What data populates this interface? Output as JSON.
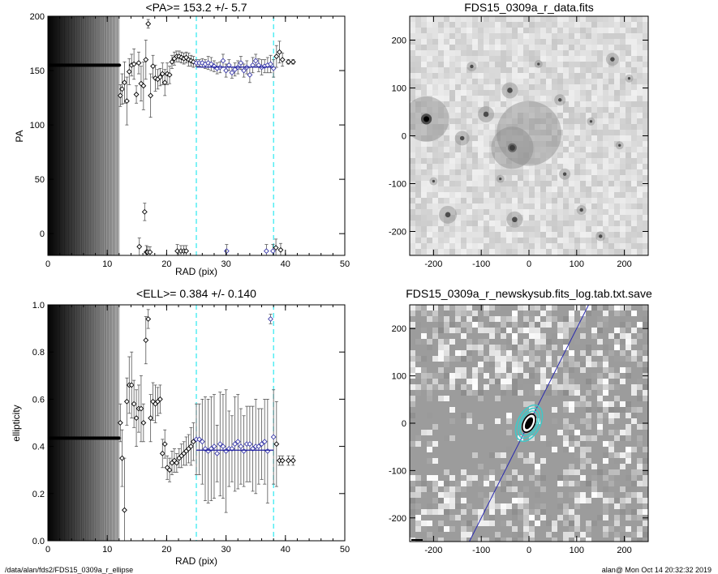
{
  "footer": {
    "left": "/data/alan/fds2/FDS15_0309a_r_ellipse",
    "right": "alan@  Mon Oct 14 20:32:32 2019"
  },
  "chart_data": [
    {
      "type": "scatter",
      "title": "<PA>= 153.2 +/-   5.7",
      "xlabel": "RAD (pix)",
      "ylabel": "PA",
      "xlim": [
        0,
        50
      ],
      "ylim": [
        -20,
        200
      ],
      "xticks": [
        0,
        10,
        20,
        30,
        40,
        50
      ],
      "yticks": [
        0,
        50,
        100,
        150,
        200
      ],
      "grayscale_band": [
        0,
        12
      ],
      "vlines": [
        25,
        38
      ],
      "vline_color": "#00e5ee",
      "fit": {
        "x": [
          25,
          38
        ],
        "y": 153.2,
        "color": "#1a1aa0"
      },
      "inner_points": {
        "x_start": 0.3,
        "x_end": 12,
        "y": 155
      },
      "x": [
        12.2,
        12.5,
        12.9,
        13.3,
        13.7,
        14.1,
        14.5,
        14.9,
        15.3,
        15.7,
        16.1,
        16.5,
        16.9,
        17.3,
        17.7,
        18.1,
        18.5,
        18.9,
        19.3,
        19.7,
        20.1,
        20.5,
        20.9,
        21.3,
        21.7,
        22.1,
        22.5,
        22.9,
        23.3,
        23.7,
        24.1,
        24.5,
        25.0,
        25.5,
        26.0,
        26.5,
        27.0,
        27.5,
        28.0,
        28.5,
        29.0,
        29.5,
        30.0,
        30.5,
        31.0,
        31.5,
        32.0,
        32.5,
        33.0,
        33.5,
        34.0,
        34.5,
        35.0,
        35.5,
        36.0,
        36.5,
        37.0,
        37.5,
        38.0,
        38.5,
        39.0,
        39.5,
        40.5,
        41.3,
        15.4,
        16.3,
        16.6,
        16.8,
        17.2,
        21.8,
        22.4,
        22.9,
        23.3,
        30.1,
        36.8,
        37.9,
        38.4,
        39.2
      ],
      "y": [
        127,
        133,
        139,
        122,
        149,
        155,
        156,
        128,
        157,
        138,
        136,
        160,
        193,
        127,
        154,
        143,
        142,
        144,
        147,
        139,
        147,
        146,
        158,
        161,
        163,
        163,
        162,
        161,
        162,
        160,
        159,
        158,
        157,
        157,
        157,
        156,
        157,
        156,
        154,
        152,
        153,
        159,
        150,
        155,
        148,
        151,
        153,
        157,
        150,
        153,
        146,
        155,
        159,
        155,
        153,
        154,
        155,
        156,
        152,
        163,
        167,
        160,
        158,
        158,
        -12,
        20,
        -17,
        -17,
        -17,
        -16,
        -16,
        -16,
        -16,
        -16,
        -16,
        -16,
        -13,
        -15
      ],
      "err": [
        10,
        14,
        19,
        22,
        12,
        10,
        14,
        8,
        10,
        16,
        22,
        18,
        4,
        20,
        10,
        12,
        9,
        8,
        10,
        12,
        10,
        8,
        6,
        6,
        5,
        5,
        5,
        5,
        5,
        6,
        5,
        5,
        3,
        3,
        4,
        4,
        6,
        6,
        5,
        5,
        5,
        6,
        6,
        5,
        5,
        6,
        6,
        6,
        6,
        6,
        7,
        7,
        6,
        6,
        7,
        6,
        7,
        8,
        8,
        10,
        10,
        6,
        2,
        2,
        8,
        8,
        6,
        5,
        5,
        6,
        5,
        5,
        5,
        6,
        6,
        6,
        8,
        6
      ]
    },
    {
      "type": "image",
      "title": "FDS15_0309a_r_data.fits",
      "xlim": [
        -250,
        250
      ],
      "ylim": [
        -250,
        250
      ],
      "xticks": [
        -200,
        -100,
        0,
        100,
        200
      ],
      "yticks": [
        -200,
        -100,
        0,
        100,
        200
      ]
    },
    {
      "type": "scatter",
      "title": "<ELL>= 0.384 +/-  0.140",
      "xlabel": "RAD (pix)",
      "ylabel": "ellipticity",
      "xlim": [
        0,
        50
      ],
      "ylim": [
        0,
        1
      ],
      "xticks": [
        0,
        10,
        20,
        30,
        40,
        50
      ],
      "yticks": [
        0.0,
        0.2,
        0.4,
        0.6,
        0.8,
        1.0
      ],
      "grayscale_band": [
        0,
        12
      ],
      "vlines": [
        25,
        38
      ],
      "vline_color": "#00e5ee",
      "fit": {
        "x": [
          25,
          38
        ],
        "y": 0.384,
        "color": "#1a1aa0"
      },
      "inner_points": {
        "x_start": 0.3,
        "x_end": 12,
        "y": 0.435
      },
      "x": [
        12.2,
        12.5,
        12.9,
        13.3,
        13.7,
        14.1,
        14.5,
        14.9,
        15.3,
        15.7,
        16.1,
        16.5,
        16.9,
        17.3,
        17.7,
        18.1,
        18.5,
        18.9,
        19.3,
        19.7,
        20.1,
        20.5,
        20.9,
        21.3,
        21.7,
        22.1,
        22.5,
        22.9,
        23.3,
        23.7,
        24.1,
        24.5,
        25.0,
        25.5,
        26.0,
        26.5,
        27.0,
        27.5,
        28.0,
        28.5,
        29.0,
        29.5,
        30.0,
        30.5,
        31.0,
        31.5,
        32.0,
        32.5,
        33.0,
        33.5,
        34.0,
        34.5,
        35.0,
        35.5,
        36.0,
        36.5,
        37.0,
        37.5,
        38.0,
        38.5,
        39.0,
        39.5,
        40.5,
        41.3
      ],
      "y": [
        0.5,
        0.35,
        0.13,
        0.59,
        0.66,
        0.66,
        0.58,
        0.52,
        0.56,
        0.56,
        0.5,
        0.85,
        0.94,
        0.52,
        0.59,
        0.58,
        0.59,
        0.6,
        0.37,
        0.41,
        0.31,
        0.3,
        0.33,
        0.34,
        0.33,
        0.35,
        0.36,
        0.37,
        0.38,
        0.39,
        0.4,
        0.42,
        0.43,
        0.43,
        0.42,
        0.39,
        0.38,
        0.39,
        0.4,
        0.37,
        0.41,
        0.4,
        0.38,
        0.39,
        0.39,
        0.41,
        0.42,
        0.4,
        0.38,
        0.41,
        0.41,
        0.39,
        0.4,
        0.4,
        0.41,
        0.42,
        0.38,
        0.94,
        0.44,
        0.41,
        0.34,
        0.34,
        0.34,
        0.34
      ],
      "err": [
        0.08,
        0.12,
        0.22,
        0.1,
        0.12,
        0.14,
        0.1,
        0.12,
        0.1,
        0.14,
        0.08,
        0.1,
        0.04,
        0.1,
        0.08,
        0.08,
        0.06,
        0.06,
        0.06,
        0.06,
        0.05,
        0.05,
        0.05,
        0.05,
        0.04,
        0.04,
        0.05,
        0.05,
        0.06,
        0.06,
        0.08,
        0.08,
        0.15,
        0.15,
        0.18,
        0.22,
        0.22,
        0.22,
        0.22,
        0.12,
        0.22,
        0.22,
        0.26,
        0.16,
        0.14,
        0.2,
        0.2,
        0.16,
        0.15,
        0.16,
        0.16,
        0.18,
        0.2,
        0.16,
        0.15,
        0.18,
        0.22,
        0.02,
        0.2,
        0.18,
        0.02,
        0.02,
        0.02,
        0.02
      ]
    },
    {
      "type": "image",
      "title": "FDS15_0309a_r_newskysub.fits_log.tab.txt.save",
      "xlim": [
        -250,
        250
      ],
      "ylim": [
        -250,
        250
      ],
      "xticks": [
        -200,
        -100,
        0,
        100,
        200
      ],
      "yticks": [
        -200,
        -100,
        0,
        100,
        200
      ],
      "line_color": "#2a2ab0",
      "contour_color": "#40c8c8"
    }
  ]
}
